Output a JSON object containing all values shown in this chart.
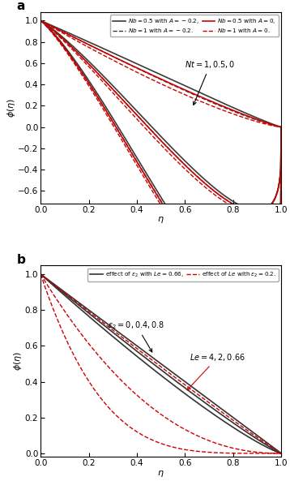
{
  "panel_a": {
    "title_label": "a",
    "ylabel": "$\\phi(\\eta)$",
    "xlabel": "$\\eta$",
    "ylim": [
      -0.72,
      1.08
    ],
    "xlim": [
      0.0,
      1.0
    ],
    "yticks": [
      -0.6,
      -0.4,
      -0.2,
      0.0,
      0.2,
      0.4,
      0.6,
      0.8,
      1.0
    ],
    "xticks": [
      0.0,
      0.2,
      0.4,
      0.6,
      0.8,
      1.0
    ]
  },
  "panel_b": {
    "title_label": "b",
    "ylabel": "$\\phi(\\eta)$",
    "xlabel": "$\\eta$",
    "ylim": [
      -0.02,
      1.05
    ],
    "xlim": [
      0.0,
      1.0
    ],
    "yticks": [
      0.0,
      0.2,
      0.4,
      0.6,
      0.8,
      1.0
    ],
    "xticks": [
      0.0,
      0.2,
      0.4,
      0.6,
      0.8,
      1.0
    ]
  }
}
